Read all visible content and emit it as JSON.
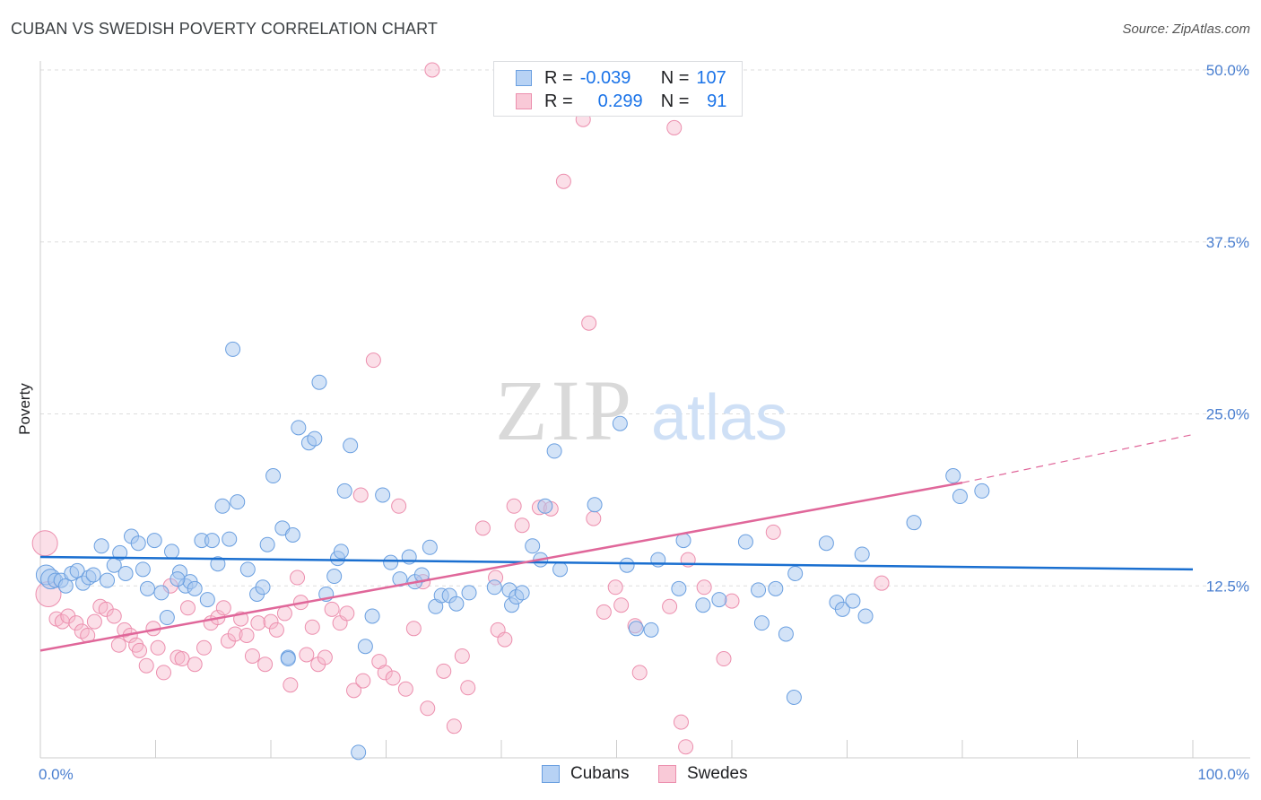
{
  "header": {
    "title": "CUBAN VS SWEDISH POVERTY CORRELATION CHART",
    "source": "Source: ZipAtlas.com"
  },
  "watermark": {
    "zip": "ZIP",
    "atlas": "atlas"
  },
  "legend_top": {
    "rows": [
      {
        "r_label": "R =",
        "r_value": "-0.039",
        "n_label": "N =",
        "n_value": "107"
      },
      {
        "r_label": "R =",
        "r_value": "0.299",
        "n_label": "N =",
        "n_value": "91"
      }
    ]
  },
  "legend_bottom": {
    "cubans": "Cubans",
    "swedes": "Swedes"
  },
  "colors": {
    "cubans_fill": "#a8c7f0",
    "cubans_stroke": "#6a9fe0",
    "cubans_line": "#1a6fd0",
    "swedes_fill": "#f6b8cb",
    "swedes_stroke": "#ec8fae",
    "swedes_line": "#e0679a",
    "axis_text": "#4a7fd0",
    "grid": "#dddddd"
  },
  "chart_data": {
    "type": "scatter",
    "title": "CUBAN VS SWEDISH POVERTY CORRELATION CHART",
    "xlabel": "",
    "ylabel": "Poverty",
    "xlim": [
      0,
      100
    ],
    "ylim": [
      0,
      50
    ],
    "x_tick_labels": [
      "0.0%",
      "100.0%"
    ],
    "y_ticks": [
      12.5,
      25.0,
      37.5,
      50.0
    ],
    "y_tick_labels": [
      "12.5%",
      "25.0%",
      "37.5%",
      "50.0%"
    ],
    "grid": true,
    "legend_placement": "top-center",
    "series": [
      {
        "name": "Cubans",
        "R": -0.039,
        "N": 107,
        "trend": {
          "x": [
            0,
            100
          ],
          "y": [
            14.6,
            13.7
          ]
        },
        "points": [
          [
            0.5,
            13.3
          ],
          [
            0.9,
            13.0
          ],
          [
            1.3,
            12.9
          ],
          [
            1.8,
            12.9
          ],
          [
            2.2,
            12.5
          ],
          [
            2.7,
            13.4
          ],
          [
            3.2,
            13.6
          ],
          [
            3.7,
            12.7
          ],
          [
            4.2,
            13.1
          ],
          [
            4.6,
            13.3
          ],
          [
            5.3,
            15.4
          ],
          [
            5.8,
            12.9
          ],
          [
            6.4,
            14.0
          ],
          [
            6.9,
            14.9
          ],
          [
            7.4,
            13.4
          ],
          [
            7.9,
            16.1
          ],
          [
            8.5,
            15.6
          ],
          [
            8.9,
            13.7
          ],
          [
            9.3,
            12.3
          ],
          [
            9.9,
            15.8
          ],
          [
            10.5,
            12.0
          ],
          [
            11.0,
            10.2
          ],
          [
            11.4,
            15.0
          ],
          [
            12.1,
            13.5
          ],
          [
            12.6,
            12.5
          ],
          [
            13.0,
            12.8
          ],
          [
            13.4,
            12.3
          ],
          [
            14.0,
            15.8
          ],
          [
            14.5,
            11.5
          ],
          [
            14.9,
            15.8
          ],
          [
            15.4,
            14.1
          ],
          [
            15.8,
            18.3
          ],
          [
            16.4,
            15.9
          ],
          [
            16.7,
            29.7
          ],
          [
            17.1,
            18.6
          ],
          [
            18.0,
            13.7
          ],
          [
            18.8,
            11.9
          ],
          [
            19.3,
            12.4
          ],
          [
            19.7,
            15.5
          ],
          [
            20.2,
            20.5
          ],
          [
            21.0,
            16.7
          ],
          [
            21.5,
            7.3
          ],
          [
            21.9,
            16.2
          ],
          [
            22.4,
            24.0
          ],
          [
            23.3,
            22.9
          ],
          [
            23.8,
            23.2
          ],
          [
            24.2,
            27.3
          ],
          [
            24.8,
            11.9
          ],
          [
            25.5,
            13.2
          ],
          [
            25.8,
            14.5
          ],
          [
            26.4,
            19.4
          ],
          [
            26.9,
            22.7
          ],
          [
            27.6,
            0.4
          ],
          [
            28.2,
            8.1
          ],
          [
            28.8,
            10.3
          ],
          [
            29.7,
            19.1
          ],
          [
            30.4,
            14.2
          ],
          [
            31.2,
            13.0
          ],
          [
            32.0,
            14.6
          ],
          [
            32.5,
            12.8
          ],
          [
            33.1,
            13.3
          ],
          [
            33.8,
            15.3
          ],
          [
            34.3,
            11.0
          ],
          [
            34.8,
            11.8
          ],
          [
            35.5,
            11.8
          ],
          [
            36.1,
            11.2
          ],
          [
            37.2,
            12.0
          ],
          [
            39.4,
            12.4
          ],
          [
            40.7,
            12.2
          ],
          [
            40.9,
            11.1
          ],
          [
            41.3,
            11.7
          ],
          [
            41.8,
            12.0
          ],
          [
            42.7,
            15.4
          ],
          [
            43.4,
            14.4
          ],
          [
            43.8,
            18.3
          ],
          [
            44.6,
            22.3
          ],
          [
            45.1,
            13.7
          ],
          [
            48.1,
            18.4
          ],
          [
            50.3,
            24.3
          ],
          [
            50.9,
            14.0
          ],
          [
            51.7,
            9.4
          ],
          [
            53.0,
            9.3
          ],
          [
            53.6,
            14.4
          ],
          [
            55.4,
            12.3
          ],
          [
            55.8,
            15.8
          ],
          [
            57.5,
            11.1
          ],
          [
            58.9,
            11.5
          ],
          [
            61.2,
            15.7
          ],
          [
            62.3,
            12.2
          ],
          [
            62.6,
            9.8
          ],
          [
            63.8,
            12.3
          ],
          [
            64.7,
            9.0
          ],
          [
            65.4,
            4.4
          ],
          [
            65.5,
            13.4
          ],
          [
            68.2,
            15.6
          ],
          [
            69.1,
            11.3
          ],
          [
            69.6,
            10.8
          ],
          [
            70.5,
            11.4
          ],
          [
            71.3,
            14.8
          ],
          [
            71.6,
            10.3
          ],
          [
            75.8,
            17.1
          ],
          [
            79.2,
            20.5
          ],
          [
            79.8,
            19.0
          ],
          [
            81.7,
            19.4
          ],
          [
            21.5,
            7.2
          ],
          [
            11.9,
            13.0
          ],
          [
            26.1,
            15.0
          ]
        ]
      },
      {
        "name": "Swedes",
        "R": 0.299,
        "N": 91,
        "trend": {
          "x": [
            0,
            80
          ],
          "y": [
            7.8,
            20.0
          ],
          "dashed_to": [
            100,
            23.5
          ]
        },
        "points": [
          [
            0.4,
            15.6
          ],
          [
            0.7,
            11.9
          ],
          [
            1.4,
            10.1
          ],
          [
            1.9,
            9.9
          ],
          [
            2.4,
            10.3
          ],
          [
            3.1,
            9.8
          ],
          [
            3.6,
            9.2
          ],
          [
            4.1,
            8.9
          ],
          [
            4.7,
            9.9
          ],
          [
            5.2,
            11.0
          ],
          [
            5.7,
            10.8
          ],
          [
            6.4,
            10.3
          ],
          [
            6.8,
            8.2
          ],
          [
            7.3,
            9.3
          ],
          [
            7.8,
            8.9
          ],
          [
            8.3,
            8.2
          ],
          [
            8.6,
            7.8
          ],
          [
            9.2,
            6.7
          ],
          [
            9.8,
            9.4
          ],
          [
            10.2,
            8.0
          ],
          [
            10.7,
            6.2
          ],
          [
            11.3,
            12.5
          ],
          [
            11.9,
            7.3
          ],
          [
            12.3,
            7.2
          ],
          [
            12.8,
            10.9
          ],
          [
            13.4,
            6.8
          ],
          [
            14.2,
            8.0
          ],
          [
            14.8,
            9.8
          ],
          [
            15.4,
            10.2
          ],
          [
            15.9,
            10.9
          ],
          [
            16.3,
            8.5
          ],
          [
            16.9,
            9.0
          ],
          [
            17.4,
            10.1
          ],
          [
            17.9,
            8.9
          ],
          [
            18.4,
            7.4
          ],
          [
            18.9,
            9.8
          ],
          [
            19.5,
            6.8
          ],
          [
            20.0,
            9.9
          ],
          [
            20.5,
            9.3
          ],
          [
            21.2,
            10.5
          ],
          [
            21.7,
            5.3
          ],
          [
            22.3,
            13.1
          ],
          [
            22.6,
            11.3
          ],
          [
            23.1,
            7.5
          ],
          [
            23.6,
            9.5
          ],
          [
            24.1,
            6.8
          ],
          [
            24.7,
            7.3
          ],
          [
            25.3,
            10.8
          ],
          [
            26.0,
            9.8
          ],
          [
            26.6,
            10.5
          ],
          [
            27.2,
            4.9
          ],
          [
            27.8,
            19.1
          ],
          [
            28.0,
            5.6
          ],
          [
            28.9,
            28.9
          ],
          [
            29.4,
            7.0
          ],
          [
            29.9,
            6.2
          ],
          [
            30.6,
            5.8
          ],
          [
            31.1,
            18.3
          ],
          [
            31.7,
            5.0
          ],
          [
            32.4,
            9.4
          ],
          [
            33.2,
            12.8
          ],
          [
            33.6,
            3.6
          ],
          [
            34.0,
            50.0
          ],
          [
            35.0,
            6.3
          ],
          [
            35.9,
            2.3
          ],
          [
            36.6,
            7.4
          ],
          [
            37.1,
            5.1
          ],
          [
            38.4,
            16.7
          ],
          [
            39.5,
            13.1
          ],
          [
            39.7,
            9.3
          ],
          [
            40.3,
            8.6
          ],
          [
            41.1,
            18.3
          ],
          [
            41.8,
            16.9
          ],
          [
            43.3,
            18.2
          ],
          [
            44.3,
            18.1
          ],
          [
            47.1,
            46.4
          ],
          [
            48.0,
            17.4
          ],
          [
            48.9,
            10.6
          ],
          [
            49.9,
            12.4
          ],
          [
            50.4,
            11.1
          ],
          [
            51.6,
            9.6
          ],
          [
            52.0,
            6.2
          ],
          [
            54.6,
            11.0
          ],
          [
            55.0,
            45.8
          ],
          [
            55.6,
            2.6
          ],
          [
            56.2,
            14.4
          ],
          [
            57.6,
            12.4
          ],
          [
            59.3,
            7.2
          ],
          [
            60.0,
            11.4
          ],
          [
            63.6,
            16.4
          ],
          [
            73.0,
            12.7
          ]
        ]
      }
    ],
    "extra_swedes_points": [
      [
        45.4,
        41.9
      ],
      [
        47.6,
        31.6
      ],
      [
        56.0,
        0.8
      ]
    ]
  }
}
